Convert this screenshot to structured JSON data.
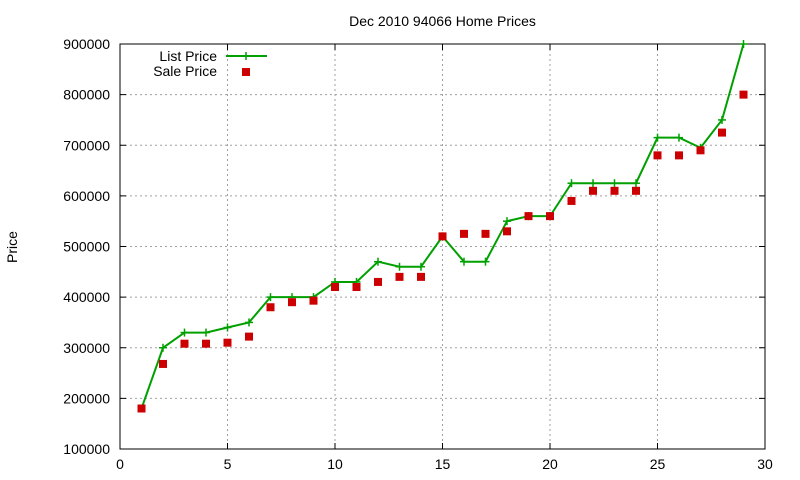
{
  "chart_data": {
    "type": "line+scatter",
    "title": "Dec 2010 94066 Home Prices",
    "xlabel": "",
    "ylabel": "Price",
    "xlim": [
      0,
      30
    ],
    "ylim": [
      100000,
      900000
    ],
    "xticks": [
      0,
      5,
      10,
      15,
      20,
      25,
      30
    ],
    "yticks": [
      100000,
      200000,
      300000,
      400000,
      500000,
      600000,
      700000,
      800000,
      900000
    ],
    "grid": true,
    "legend_position": "top-left",
    "series": [
      {
        "name": "List Price",
        "kind": "line",
        "marker": "plus",
        "color": "#00a000",
        "x": [
          1,
          2,
          3,
          4,
          5,
          6,
          7,
          8,
          9,
          10,
          11,
          12,
          13,
          14,
          15,
          16,
          17,
          18,
          19,
          20,
          21,
          22,
          23,
          24,
          25,
          26,
          27,
          28,
          29
        ],
        "y": [
          180000,
          300000,
          330000,
          330000,
          340000,
          350000,
          400000,
          400000,
          400000,
          430000,
          430000,
          470000,
          460000,
          460000,
          520000,
          470000,
          470000,
          550000,
          560000,
          560000,
          625000,
          625000,
          625000,
          625000,
          715000,
          715000,
          695000,
          750000,
          900000
        ]
      },
      {
        "name": "Sale Price",
        "kind": "scatter",
        "marker": "square",
        "color": "#cc0000",
        "x": [
          1,
          2,
          3,
          4,
          5,
          6,
          7,
          8,
          9,
          10,
          11,
          12,
          13,
          14,
          15,
          16,
          17,
          18,
          19,
          20,
          21,
          22,
          23,
          24,
          25,
          26,
          27,
          28,
          29
        ],
        "y": [
          180000,
          268000,
          308000,
          308000,
          310000,
          322000,
          380000,
          390000,
          393000,
          420000,
          420000,
          430000,
          440000,
          440000,
          520000,
          525000,
          525000,
          530000,
          560000,
          560000,
          590000,
          610000,
          610000,
          610000,
          680000,
          680000,
          690000,
          725000,
          800000
        ]
      }
    ]
  }
}
